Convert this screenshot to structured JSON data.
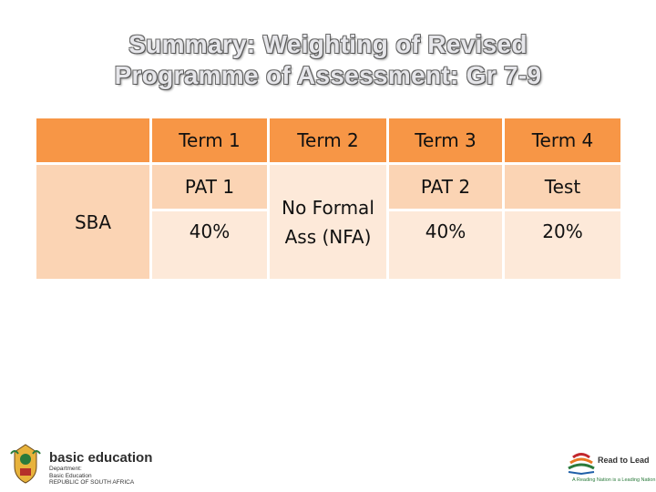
{
  "title": {
    "line1": "Summary: Weighting of Revised",
    "line2": "Programme of Assessment: Gr 7-9"
  },
  "table": {
    "headers": [
      "",
      "Term 1",
      "Term 2",
      "Term 3",
      "Term 4"
    ],
    "row_label": "SBA",
    "task_row": [
      "PAT 1",
      "No Formal Ass (NFA)",
      "PAT 2",
      "Test"
    ],
    "weight_row": [
      "40%",
      "40%",
      "20%"
    ]
  },
  "logos": {
    "left_name": "basic education",
    "left_line1": "Department:",
    "left_line2": "Basic Education",
    "left_line3": "REPUBLIC OF SOUTH AFRICA",
    "right_name": "Read to Lead",
    "right_tagline": "A Reading Nation is a Leading Nation"
  },
  "colors": {
    "header": "#f79646",
    "cell_light": "#fde9d9",
    "cell_mid": "#fbd4b4"
  }
}
